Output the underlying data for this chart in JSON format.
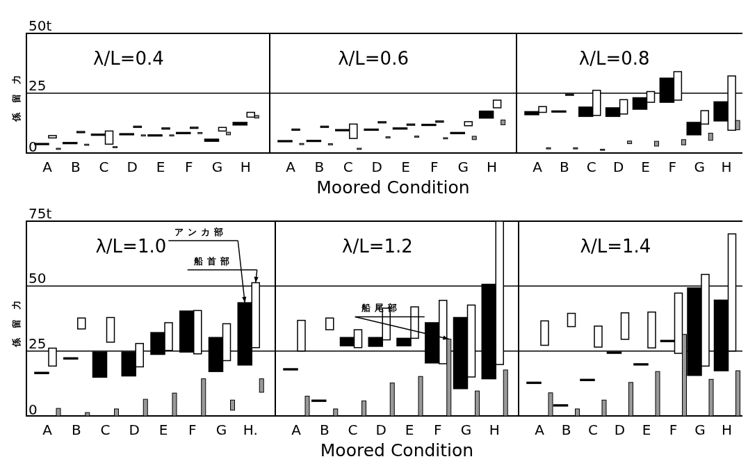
{
  "chart_data": [
    {
      "type": "bar",
      "title": "λ/L=0.4",
      "ylabel": "係留力",
      "categories": [
        "A",
        "B",
        "C",
        "D",
        "E",
        "F",
        "G",
        "H"
      ],
      "ylim": [
        0,
        50
      ],
      "yticks": [
        0,
        25,
        {
          "value": 50,
          "label": "50t"
        }
      ],
      "grid": "y",
      "series": [
        {
          "color": "#000000",
          "base": [
            3.5,
            3.9,
            7.4,
            7.6,
            7.1,
            8.1,
            4.9,
            11.7
          ],
          "values": [
            0.5,
            0.5,
            0.5,
            0.5,
            0.5,
            0.5,
            0.9,
            1.1
          ]
        },
        {
          "color": "#ffffff",
          "base": [
            6.3,
            8.5,
            3.7,
            10.7,
            10.0,
            10.3,
            9.2,
            15.0
          ],
          "values": [
            1.0,
            0.5,
            5.5,
            0.5,
            0.5,
            0.5,
            1.5,
            2.0
          ]
        },
        {
          "color": "#999999",
          "base": [
            1.5,
            3.2,
            2.2,
            7.1,
            7.1,
            8.1,
            7.6,
            14.6
          ],
          "values": [
            0.5,
            0.5,
            0.5,
            0.5,
            0.5,
            0.5,
            1.1,
            1.1
          ]
        }
      ]
    },
    {
      "type": "bar",
      "title": "λ/L=0.6",
      "xlabel": "Moored Condition",
      "tick_labels": "x",
      "categories": [
        "A",
        "B",
        "C",
        "D",
        "E",
        "F",
        "G",
        "H"
      ],
      "ylim": [
        0,
        50
      ],
      "yticks": [
        0,
        25,
        50
      ],
      "grid": "y",
      "series": [
        {
          "color": "#000000",
          "base": [
            4.7,
            4.8,
            9.3,
            9.5,
            10.0,
            11.5,
            8.1,
            14.6
          ],
          "values": [
            0.5,
            0.5,
            0.5,
            0.5,
            0.5,
            0.5,
            0.5,
            2.9
          ]
        },
        {
          "color": "#ffffff",
          "base": [
            9.5,
            10.7,
            6.1,
            12.6,
            11.6,
            12.9,
            11.4,
            18.9
          ],
          "values": [
            0.5,
            0.5,
            6.0,
            0.5,
            0.5,
            0.5,
            1.7,
            3.2
          ]
        },
        {
          "color": "#999999",
          "base": [
            3.5,
            3.4,
            1.5,
            6.3,
            6.6,
            5.9,
            5.6,
            11.8
          ],
          "values": [
            0.5,
            0.5,
            0.5,
            0.5,
            0.5,
            0.5,
            1.4,
            2.0
          ]
        }
      ]
    },
    {
      "type": "bar",
      "title": "λ/L=0.8",
      "tick_labels": "x",
      "categories": [
        "A",
        "B",
        "C",
        "D",
        "E",
        "F",
        "G",
        "H"
      ],
      "ylim": [
        0,
        50
      ],
      "yticks": [
        0,
        25,
        50
      ],
      "grid": "y",
      "series": [
        {
          "color": "#000000",
          "base": [
            16.0,
            17.1,
            15.3,
            15.3,
            18.3,
            21.2,
            7.6,
            13.4
          ],
          "values": [
            1.3,
            0.5,
            3.9,
            3.6,
            4.8,
            10.1,
            5.2,
            8.0
          ]
        },
        {
          "color": "#ffffff",
          "base": [
            17.0,
            24.1,
            15.7,
            16.3,
            21.2,
            22.1,
            12.1,
            9.5
          ],
          "values": [
            2.4,
            0.5,
            10.5,
            6.0,
            4.5,
            11.9,
            5.6,
            22.7
          ]
        },
        {
          "color": "#999999",
          "base": [
            1.7,
            1.7,
            1.1,
            3.9,
            2.9,
            3.4,
            5.3,
            9.7
          ],
          "values": [
            0.5,
            0.5,
            0.5,
            1.1,
            2.0,
            2.2,
            3.0,
            3.9
          ]
        }
      ]
    },
    {
      "type": "bar",
      "title": "λ/L=1.0",
      "ylabel": "係留力",
      "categories": [
        "A",
        "B",
        "C",
        "D",
        "E",
        "F",
        "G",
        "H."
      ],
      "ylim": [
        0,
        75
      ],
      "yticks": [
        0,
        25,
        50,
        {
          "value": 75,
          "label": "75t"
        }
      ],
      "grid": "y",
      "series": [
        {
          "name": "アンカ部",
          "color": "#000000",
          "base": [
            16.3,
            21.9,
            14.9,
            15.4,
            23.7,
            24.6,
            17.1,
            19.6
          ],
          "values": [
            0.5,
            0.5,
            9.7,
            9.2,
            8.4,
            15.8,
            13.1,
            24.0
          ]
        },
        {
          "name": "船首部",
          "color": "#ffffff",
          "base": [
            19.2,
            33.5,
            28.4,
            18.9,
            25.2,
            23.9,
            21.3,
            26.3
          ],
          "values": [
            6.9,
            4.2,
            9.5,
            9.0,
            10.7,
            16.7,
            14.2,
            25.0
          ]
        },
        {
          "color": "#999999",
          "base": [
            0,
            0,
            0,
            0,
            0,
            0,
            2.2,
            9.1
          ],
          "values": [
            2.9,
            1.3,
            2.7,
            6.4,
            8.8,
            14.3,
            3.9,
            5.2
          ]
        }
      ]
    },
    {
      "type": "bar",
      "title": "λ/L=1.2",
      "xlabel": "Moored Condition",
      "tick_labels": "x",
      "categories": [
        "A",
        "B",
        "C",
        "D",
        "E",
        "F",
        "G",
        "H"
      ],
      "ylim": [
        0,
        75
      ],
      "yticks": [
        0,
        25,
        50,
        75
      ],
      "grid": "y",
      "series": [
        {
          "color": "#000000",
          "base": [
            17.7,
            5.6,
            27.0,
            26.8,
            27.0,
            20.4,
            10.5,
            14.3
          ],
          "values": [
            0.5,
            0.5,
            3.2,
            3.4,
            2.9,
            15.5,
            27.4,
            36.4
          ]
        },
        {
          "color": "#ffffff",
          "base": [
            25.0,
            33.2,
            26.3,
            29.3,
            29.9,
            20.1,
            15.0,
            19.8
          ],
          "values": [
            11.8,
            4.5,
            6.9,
            12.2,
            12.1,
            24.4,
            27.7,
            55.2
          ]
        },
        {
          "name": "船尾部",
          "color": "#999999",
          "base": [
            0,
            0,
            0,
            0,
            0,
            0,
            0,
            0
          ],
          "values": [
            7.6,
            2.7,
            5.8,
            12.7,
            15.2,
            29.6,
            9.6,
            17.7
          ]
        }
      ]
    },
    {
      "type": "bar",
      "title": "λ/L=1.4",
      "tick_labels": "x",
      "categories": [
        "A",
        "B",
        "C",
        "D",
        "E",
        "F",
        "G",
        "H"
      ],
      "ylim": [
        0,
        75
      ],
      "yticks": [
        0,
        25,
        50,
        75
      ],
      "grid": "y",
      "series": [
        {
          "color": "#000000",
          "base": [
            12.5,
            3.8,
            13.6,
            24.1,
            19.6,
            28.6,
            15.6,
            17.4
          ],
          "values": [
            0.5,
            0.5,
            0.5,
            0.5,
            0.5,
            0.5,
            33.7,
            27.2
          ]
        },
        {
          "color": "#ffffff",
          "base": [
            27.2,
            34.4,
            26.5,
            29.5,
            26.2,
            24.1,
            19.2,
            25.0
          ],
          "values": [
            9.4,
            5.1,
            8.1,
            10.2,
            13.8,
            23.2,
            35.3,
            45.1
          ]
        },
        {
          "color": "#999999",
          "base": [
            0,
            0,
            0,
            0,
            0,
            0,
            0,
            0
          ],
          "values": [
            8.9,
            2.7,
            6.1,
            12.9,
            17.1,
            31.4,
            14.1,
            17.4
          ]
        }
      ]
    }
  ]
}
